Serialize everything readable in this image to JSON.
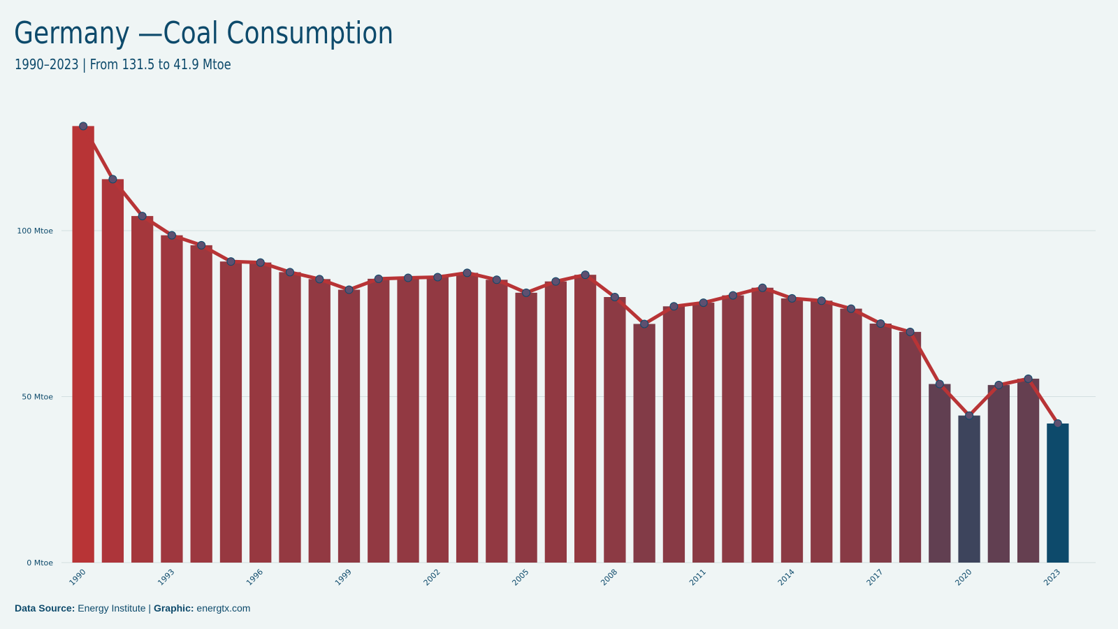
{
  "title": "Germany —Coal Consumption",
  "subtitle": "1990–2023 | From 131.5 to 41.9 Mtoe",
  "footer": {
    "source_label": "Data Source:",
    "source_value": "Energy Institute",
    "separator": "|",
    "graphic_label": "Graphic:",
    "graphic_value": "energtx.com"
  },
  "colors": {
    "background": "#eff5f5",
    "text": "#0d4a6b",
    "line": "#b83436",
    "bar_high": "#b83436",
    "bar_low": "#0d4a6b",
    "grid": "#d3dfe0"
  },
  "chart_data": {
    "type": "bar",
    "title": "Germany —Coal Consumption",
    "subtitle": "1990–2023 | From 131.5 to 41.9 Mtoe",
    "xlabel": "",
    "ylabel": "",
    "ylim": [
      0,
      140
    ],
    "yticks": [
      0,
      50,
      100
    ],
    "ytick_labels": [
      "0 Mtoe",
      "50 Mtoe",
      "100 Mtoe"
    ],
    "xtick_labels": [
      "1990",
      "1993",
      "1996",
      "1999",
      "2002",
      "2005",
      "2008",
      "2011",
      "2014",
      "2017",
      "2020",
      "2023"
    ],
    "grid": true,
    "overlay": "line with markers",
    "categories": [
      1990,
      1991,
      1992,
      1993,
      1994,
      1995,
      1996,
      1997,
      1998,
      1999,
      2000,
      2001,
      2002,
      2003,
      2004,
      2005,
      2006,
      2007,
      2008,
      2009,
      2010,
      2011,
      2012,
      2013,
      2014,
      2015,
      2016,
      2017,
      2018,
      2019,
      2020,
      2021,
      2022,
      2023
    ],
    "values": [
      131.5,
      115.5,
      104.4,
      98.6,
      95.6,
      90.7,
      90.4,
      87.5,
      85.4,
      82.2,
      85.5,
      85.8,
      86.0,
      87.3,
      85.2,
      81.3,
      84.7,
      86.7,
      80.0,
      71.9,
      77.2,
      78.3,
      80.5,
      82.8,
      79.6,
      78.9,
      76.5,
      72.0,
      69.5,
      53.8,
      44.3,
      53.5,
      55.4,
      41.9
    ]
  }
}
